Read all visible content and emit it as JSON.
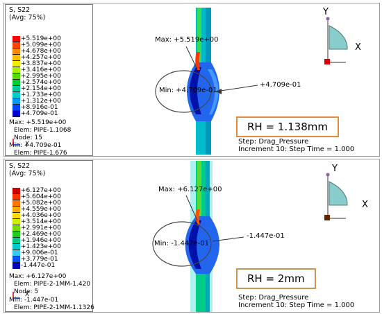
{
  "panels": [
    {
      "id": "top",
      "legend": {
        "title": "S, S22",
        "avg": "(Avg: 75%)",
        "levels": [
          {
            "label": "+5.519e+00",
            "color": "#ff0000"
          },
          {
            "label": "+5.099e+00",
            "color": "#ff4400"
          },
          {
            "label": "+4.678e+00",
            "color": "#ff8800"
          },
          {
            "label": "+4.257e+00",
            "color": "#ffbb00"
          },
          {
            "label": "+3.837e+00",
            "color": "#eeee00"
          },
          {
            "label": "+3.416e+00",
            "color": "#aaee00"
          },
          {
            "label": "+2.995e+00",
            "color": "#55dd00"
          },
          {
            "label": "+2.574e+00",
            "color": "#00cc33"
          },
          {
            "label": "+2.154e+00",
            "color": "#00cc99"
          },
          {
            "label": "+1.733e+00",
            "color": "#00cccc"
          },
          {
            "label": "+1.312e+00",
            "color": "#0099ff"
          },
          {
            "label": "+8.916e-01",
            "color": "#0044ff"
          },
          {
            "label": "+4.709e-01",
            "color": "#0000cc"
          }
        ]
      },
      "info": {
        "max": "Max: +5.519e+00",
        "max_elem": "Elem: PIPE-1.1068",
        "max_node": "Node: 15",
        "min": "Min: +4.709e-01",
        "min_elem": "Elem: PIPE-1.676"
      },
      "triad_x": "X",
      "max_callout": "Max: +5.519e+00",
      "min_callout": "Min: +4.709e-01",
      "min_value_callout": "+4.709e-01",
      "rh_label": "RH = 1.138mm",
      "step": "Step: Drag_Pressure",
      "increment": "Increment     10: Step Time =      1.000",
      "axis_y": "Y",
      "axis_x": "X"
    },
    {
      "id": "bottom",
      "legend": {
        "title": "S, S22",
        "avg": "(Avg: 75%)",
        "levels": [
          {
            "label": "+6.127e+00",
            "color": "#cc0000"
          },
          {
            "label": "+5.604e+00",
            "color": "#ff3300"
          },
          {
            "label": "+5.082e+00",
            "color": "#ff7700"
          },
          {
            "label": "+4.559e+00",
            "color": "#ffaa00"
          },
          {
            "label": "+4.036e+00",
            "color": "#ffdd00"
          },
          {
            "label": "+3.514e+00",
            "color": "#ccee00"
          },
          {
            "label": "+2.991e+00",
            "color": "#77dd00"
          },
          {
            "label": "+2.469e+00",
            "color": "#22cc22"
          },
          {
            "label": "+1.946e+00",
            "color": "#00cc88"
          },
          {
            "label": "+1.423e+00",
            "color": "#00cccc"
          },
          {
            "label": "+9.006e-01",
            "color": "#33ccee"
          },
          {
            "label": "+3.779e-01",
            "color": "#0055ff"
          },
          {
            "label": "-1.447e-01",
            "color": "#0000bb"
          }
        ]
      },
      "info": {
        "max": "Max: +6.127e+00",
        "max_elem": "Elem: PIPE-2-1MM-1.420",
        "max_node": "Node: 5",
        "min": "Min: -1.447e-01",
        "min_elem": "Elem: PIPE-2-1MM-1.1326"
      },
      "triad_x": "X",
      "max_callout": "Max: +6.127e+00",
      "min_callout": "Min: -1.447e-01",
      "min_value_callout": "-1.447e-01",
      "rh_label": "RH = 2mm",
      "step": "Step: Drag_Pressure",
      "increment": "Increment     10: Step Time =      1.000",
      "axis_y": "Y",
      "axis_x": "X"
    }
  ]
}
